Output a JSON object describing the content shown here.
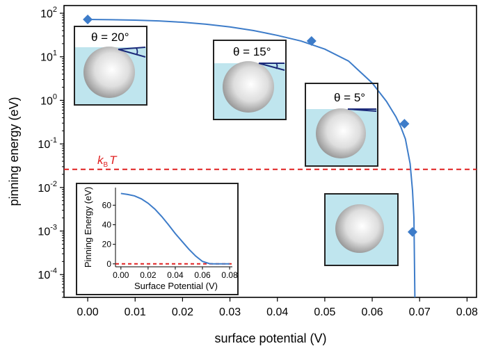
{
  "chart_data": [
    {
      "type": "line",
      "xlabel": "surface potential (V)",
      "ylabel": "pinning energy (eV)",
      "xscale": "linear",
      "yscale": "log",
      "xlim": [
        -0.005,
        0.082
      ],
      "ylim": [
        3e-05,
        150
      ],
      "x_ticks": [
        "0.00",
        "0.01",
        "0.02",
        "0.03",
        "0.04",
        "0.05",
        "0.06",
        "0.07",
        "0.08"
      ],
      "y_ticks": [
        {
          "base": "10",
          "exp": "2"
        },
        {
          "base": "10",
          "exp": "1"
        },
        {
          "base": "10",
          "exp": "0"
        },
        {
          "base": "10",
          "exp": "-1"
        },
        {
          "base": "10",
          "exp": "-2"
        },
        {
          "base": "10",
          "exp": "-3"
        },
        {
          "base": "10",
          "exp": "-4"
        }
      ],
      "series": [
        {
          "color": "#3d7cc9",
          "x": [
            0.0,
            0.005,
            0.01,
            0.015,
            0.02,
            0.025,
            0.03,
            0.035,
            0.04,
            0.045,
            0.05,
            0.055,
            0.06,
            0.063,
            0.065,
            0.066,
            0.067,
            0.068,
            0.0685,
            0.0688,
            0.069
          ],
          "y": [
            72,
            71,
            69.5,
            66.5,
            62,
            56,
            48.5,
            40,
            31,
            23,
            15,
            8,
            2.5,
            0.95,
            0.42,
            0.25,
            0.13,
            0.035,
            0.0085,
            0.002,
            3e-05
          ]
        }
      ],
      "markers": {
        "shape": "diamond",
        "x": [
          0.0,
          0.0472,
          0.0668,
          0.0685
        ],
        "y": [
          72,
          23,
          0.29,
          0.00095
        ]
      },
      "threshold": {
        "y": 0.026,
        "label_main": "k",
        "label_sub": "B",
        "label_tail": "T",
        "color": "#e02020"
      },
      "grid": false
    },
    {
      "type": "line",
      "xlabel": "Surface Potential (V)",
      "ylabel": "Pinning Energy (eV)",
      "xlim": [
        -0.004,
        0.082
      ],
      "ylim": [
        -3,
        78
      ],
      "x_ticks": [
        "0.00",
        "0.02",
        "0.04",
        "0.06",
        "0.08"
      ],
      "y_ticks": [
        "0",
        "20",
        "40",
        "60"
      ],
      "series": [
        {
          "color": "#3d7cc9",
          "x": [
            0.0,
            0.005,
            0.01,
            0.015,
            0.02,
            0.025,
            0.03,
            0.035,
            0.04,
            0.045,
            0.05,
            0.055,
            0.06,
            0.065,
            0.068,
            0.07,
            0.08
          ],
          "y": [
            72,
            71,
            69.5,
            66.5,
            62,
            56,
            48.5,
            40,
            31,
            23,
            15,
            8,
            2.5,
            0.3,
            0,
            0,
            0
          ]
        }
      ],
      "threshold": {
        "y": 0.026,
        "color": "#e02020"
      }
    }
  ],
  "schematics": [
    {
      "angle_label": "θ = 20°"
    },
    {
      "angle_label": "θ = 15°"
    },
    {
      "angle_label": "θ = 5°"
    },
    {
      "angle_label": ""
    }
  ]
}
